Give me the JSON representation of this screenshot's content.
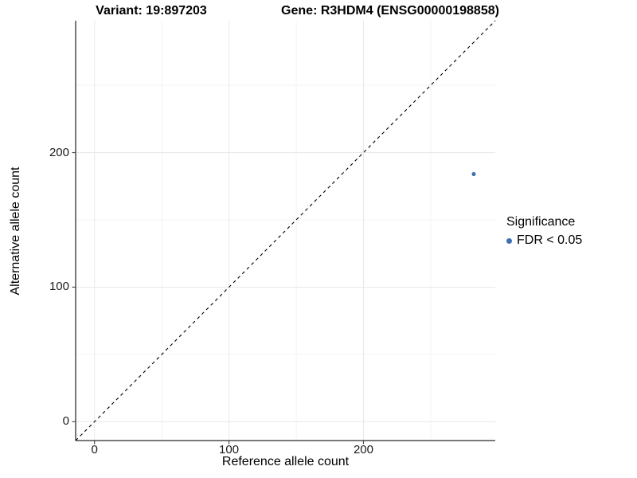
{
  "titles": {
    "variant": "Variant: 19:897203",
    "gene": "Gene: R3HDM4 (ENSG00000198858)"
  },
  "chart_data": {
    "type": "scatter",
    "xlabel": "Reference allele count",
    "ylabel": "Alternative allele count",
    "xlim": [
      -14,
      298
    ],
    "ylim": [
      -14,
      298
    ],
    "xticks": [
      0,
      100,
      200
    ],
    "yticks": [
      0,
      100,
      200
    ],
    "xminor": [
      50,
      150,
      250
    ],
    "yminor": [
      50,
      150,
      250
    ],
    "grid": true,
    "points": [
      {
        "x": 282,
        "y": 184,
        "series": "FDR < 0.05"
      }
    ],
    "identity_line": {
      "shown": true,
      "equation": "y = x",
      "style": "dashed"
    },
    "legend": {
      "title": "Significance",
      "position": "right",
      "items": [
        {
          "label": "FDR < 0.05",
          "color": "#3e6fb0"
        }
      ]
    }
  },
  "colors": {
    "background": "#ffffff",
    "point": "#3e6fb0",
    "grid_major": "#e8e8e8",
    "grid_minor": "#f1f1f1",
    "axis": "#4d4d4d",
    "identity_line": "#000000",
    "text": "#000000"
  }
}
